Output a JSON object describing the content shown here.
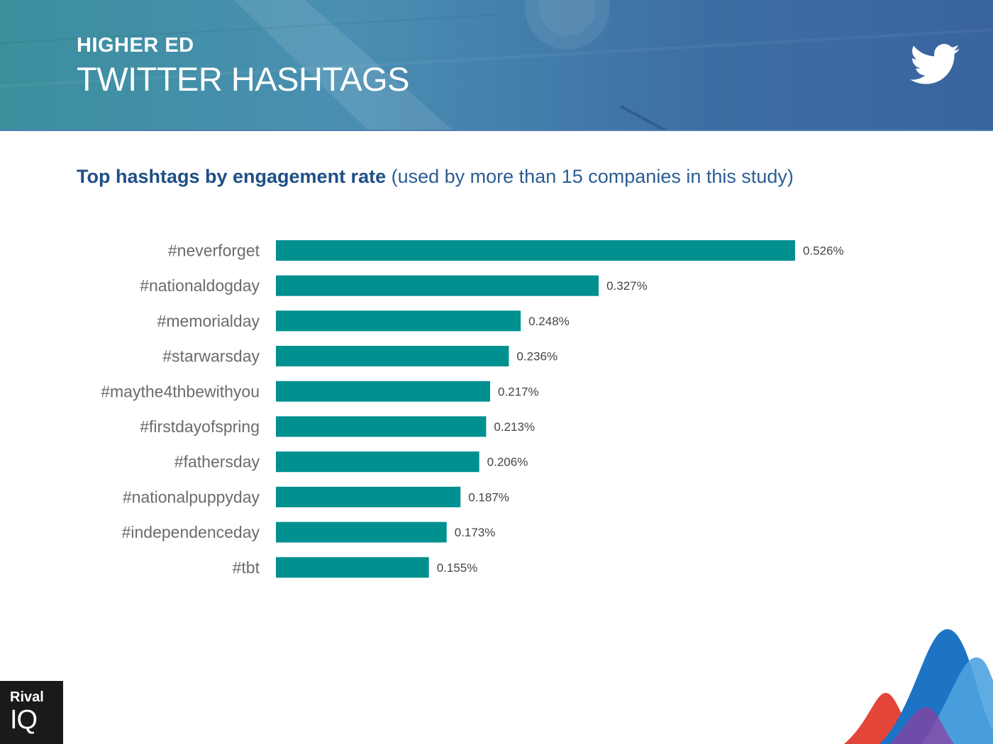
{
  "header": {
    "kicker": "HIGHER ED",
    "title": "TWITTER HASHTAGS",
    "icon": "twitter-bird-icon"
  },
  "subtitle": {
    "bold": "Top hashtags by engagement rate",
    "rest": "(used by more than 15 companies in this study)"
  },
  "colors": {
    "bar": "#009090",
    "title_blue": "#1f4f86",
    "label_gray": "#6b6b6b"
  },
  "chart_data": {
    "type": "bar",
    "orientation": "horizontal",
    "title": "Top hashtags by engagement rate",
    "categories": [
      "#neverforget",
      "#nationaldogday",
      "#memorialday",
      "#starwarsday",
      "#maythe4thbewithyou",
      "#firstdayofspring",
      "#fathersday",
      "#nationalpuppyday",
      "#independenceday",
      "#tbt"
    ],
    "values": [
      0.526,
      0.327,
      0.248,
      0.236,
      0.217,
      0.213,
      0.206,
      0.187,
      0.173,
      0.155
    ],
    "value_labels": [
      "0.526%",
      "0.327%",
      "0.248%",
      "0.236%",
      "0.217%",
      "0.213%",
      "0.206%",
      "0.187%",
      "0.173%",
      "0.155%"
    ],
    "unit": "%",
    "grid": false,
    "legend": "none"
  },
  "logo": {
    "top": "Rival",
    "bottom": "IQ"
  }
}
